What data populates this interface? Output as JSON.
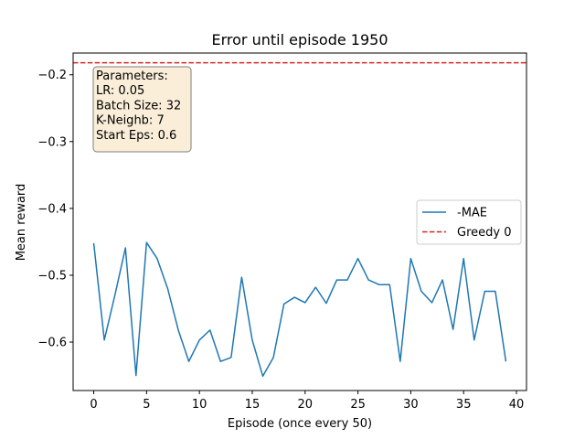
{
  "chart_data": {
    "type": "line",
    "title": "Error until episode 1950",
    "xlabel": "Episode (once every 50)",
    "ylabel": "Mean reward",
    "xlim": [
      -1.95,
      40.95
    ],
    "ylim": [
      -0.6725,
      -0.1675
    ],
    "x_ticks": [
      0,
      5,
      10,
      15,
      20,
      25,
      30,
      35,
      40
    ],
    "y_ticks": [
      -0.6,
      -0.5,
      -0.4,
      -0.3,
      -0.2
    ],
    "y_tick_labels": [
      "−0.6",
      "−0.5",
      "−0.4",
      "−0.3",
      "−0.2"
    ],
    "grid": false,
    "legend_position": "center-right",
    "series": [
      {
        "name": "-MAE",
        "color": "#1f77b4",
        "style": "solid",
        "x": [
          0,
          1,
          2,
          3,
          4,
          5,
          6,
          7,
          8,
          9,
          10,
          11,
          12,
          13,
          14,
          15,
          16,
          17,
          18,
          19,
          20,
          21,
          22,
          23,
          24,
          25,
          26,
          27,
          28,
          29,
          30,
          31,
          32,
          33,
          34,
          35,
          36,
          37,
          38,
          39
        ],
        "values": [
          -0.452,
          -0.597,
          -0.53,
          -0.459,
          -0.65,
          -0.451,
          -0.475,
          -0.52,
          -0.582,
          -0.629,
          -0.597,
          -0.582,
          -0.629,
          -0.623,
          -0.503,
          -0.597,
          -0.651,
          -0.623,
          -0.543,
          -0.533,
          -0.541,
          -0.518,
          -0.542,
          -0.507,
          -0.507,
          -0.475,
          -0.507,
          -0.514,
          -0.514,
          -0.629,
          -0.475,
          -0.524,
          -0.541,
          -0.507,
          -0.581,
          -0.475,
          -0.597,
          -0.524,
          -0.524,
          -0.629
        ]
      },
      {
        "name": "Greedy 0",
        "color": "#d62728",
        "style": "dashed",
        "type": "hline",
        "value": -0.182
      }
    ],
    "annotation": {
      "lines": [
        "Parameters:",
        "LR: 0.05",
        "Batch Size: 32",
        "K-Neighb: 7",
        "Start Eps: 0.6"
      ],
      "position": "top-left"
    }
  }
}
